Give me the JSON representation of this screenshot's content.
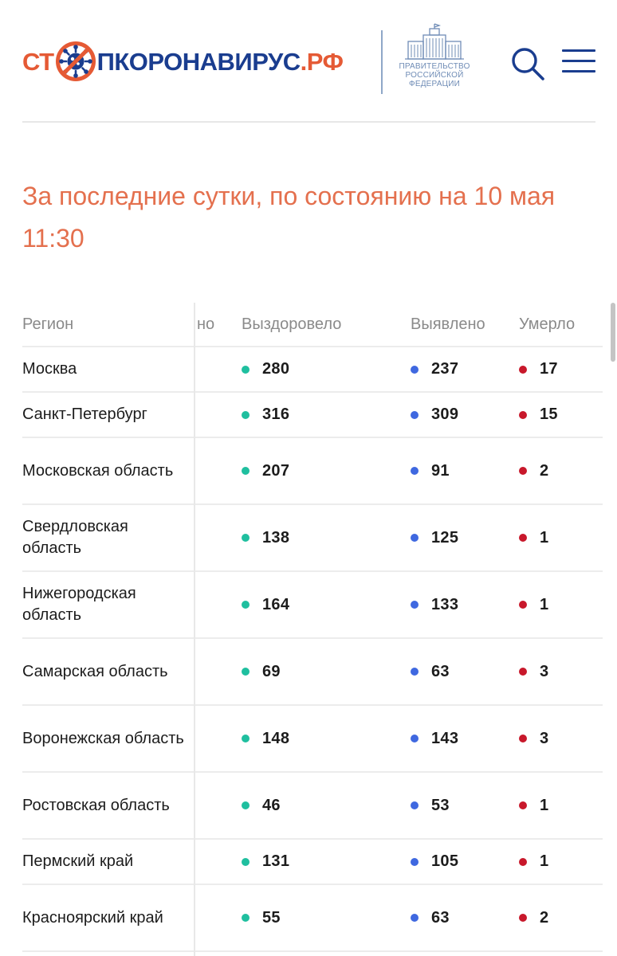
{
  "header": {
    "logo": {
      "part1": "СТ",
      "part2": "ПКОРОНАВИРУС",
      "part3": ".РФ",
      "virus_icon": "crossed-out-virus-icon"
    },
    "gov_label": "ПРАВИТЕЛЬСТВО\nРОССИЙСКОЙ\nФЕДЕРАЦИИ",
    "search_icon": "search-icon",
    "menu_icon": "hamburger-menu-icon"
  },
  "headline": "За последние сутки, по состоянию на 10 мая 11:30",
  "table": {
    "columns": {
      "region": "Регион",
      "hidden": "но",
      "recovered": "Выздоровело",
      "detected": "Выявлено",
      "died": "Умерло"
    },
    "rows": [
      {
        "region": "Москва",
        "recovered": "280",
        "detected": "237",
        "died": "17"
      },
      {
        "region": "Санкт-Петербург",
        "recovered": "316",
        "detected": "309",
        "died": "15"
      },
      {
        "region": "Московская область",
        "recovered": "207",
        "detected": "91",
        "died": "2"
      },
      {
        "region": "Свердловская область",
        "recovered": "138",
        "detected": "125",
        "died": "1"
      },
      {
        "region": "Нижегородская область",
        "recovered": "164",
        "detected": "133",
        "died": "1"
      },
      {
        "region": "Самарская область",
        "recovered": "69",
        "detected": "63",
        "died": "3"
      },
      {
        "region": "Воронежская область",
        "recovered": "148",
        "detected": "143",
        "died": "3"
      },
      {
        "region": "Ростовская область",
        "recovered": "46",
        "detected": "53",
        "died": "1"
      },
      {
        "region": "Пермский край",
        "recovered": "131",
        "detected": "105",
        "died": "1"
      },
      {
        "region": "Красноярский край",
        "recovered": "55",
        "detected": "63",
        "died": "2"
      }
    ]
  },
  "colors": {
    "brand_red": "#e55a35",
    "brand_blue": "#1a3d8f",
    "headline": "#e4704e",
    "recovered_dot": "#1fbf9f",
    "detected_dot": "#3f68e0",
    "died_dot": "#c8182b"
  }
}
